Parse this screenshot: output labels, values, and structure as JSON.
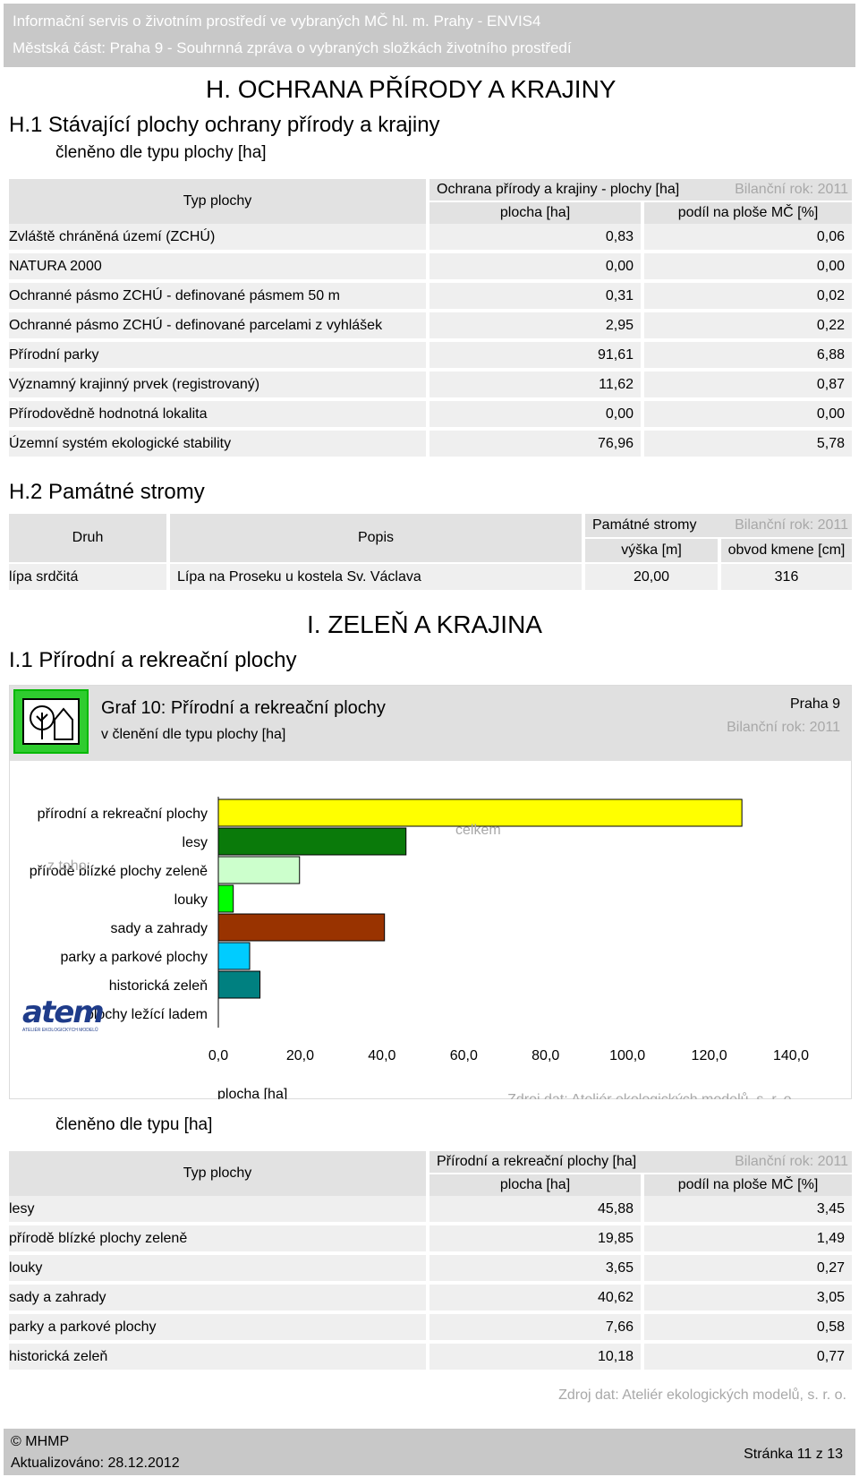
{
  "header": {
    "line1": "Informační servis o životním prostředí ve vybraných MČ hl. m. Prahy - ENVIS4",
    "line2": "Městská část: Praha 9 - Souhrnná zpráva o vybraných složkách životního prostředí"
  },
  "section_h": {
    "title": "H. OCHRANA PŘÍRODY A KRAJINY",
    "h1_title": "H.1  Stávající plochy ochrany přírody a krajiny",
    "h1_subtitle": "členěno dle typu plochy [ha]",
    "table": {
      "col_type": "Typ plochy",
      "group": "Ochrana přírody a krajiny - plochy [ha]",
      "year": "Bilanční rok: 2011",
      "col_area": "plocha [ha]",
      "col_share": "podíl na ploše MČ [%]",
      "rows": [
        {
          "name": "Zvláště chráněná území (ZCHÚ)",
          "area": "0,83",
          "share": "0,06"
        },
        {
          "name": "NATURA 2000",
          "area": "0,00",
          "share": "0,00"
        },
        {
          "name": "Ochranné pásmo ZCHÚ - definované pásmem 50 m",
          "area": "0,31",
          "share": "0,02"
        },
        {
          "name": "Ochranné pásmo ZCHÚ - definované parcelami z vyhlášek",
          "area": "2,95",
          "share": "0,22"
        },
        {
          "name": "Přírodní parky",
          "area": "91,61",
          "share": "6,88"
        },
        {
          "name": "Významný krajinný prvek (registrovaný)",
          "area": "11,62",
          "share": "0,87"
        },
        {
          "name": "Přírodovědně hodnotná lokalita",
          "area": "0,00",
          "share": "0,00"
        },
        {
          "name": "Územní systém ekologické stability",
          "area": "76,96",
          "share": "5,78"
        }
      ]
    },
    "h2_title": "H.2  Památné stromy",
    "trees": {
      "col_kind": "Druh",
      "col_desc": "Popis",
      "group": "Památné stromy",
      "year": "Bilanční rok: 2011",
      "col_height": "výška [m]",
      "col_girth": "obvod kmene [cm]",
      "rows": [
        {
          "kind": "lípa srdčitá",
          "desc": "Lípa na Proseku u kostela Sv. Václava",
          "height": "20,00",
          "girth": "316"
        }
      ]
    }
  },
  "section_i": {
    "title": "I. ZELEŇ A KRAJINA",
    "i1_title": "I.1   Přírodní a rekreační plochy",
    "chart": {
      "title": "Graf 10: Přírodní a rekreační plochy",
      "subtitle": "v členění dle typu plochy [ha]",
      "area": "Praha 9",
      "year": "Bilanční rok: 2011",
      "total_label": "celkem",
      "ztoho": "z toho:",
      "xlabel": "plocha [ha]",
      "source": "Zdroj dat: Ateliér ekologických modelů, s. r. o.",
      "logo_text": "atem",
      "logo_sub": "ATELIÉR EKOLOGICKÝCH MODELŮ"
    },
    "chart_data": {
      "type": "bar",
      "orientation": "horizontal",
      "categories": [
        "přírodní a rekreační plochy",
        "lesy",
        "přírodě blízké plochy zeleně",
        "louky",
        "sady a zahrady",
        "parky a parkové plochy",
        "historická zeleň",
        "plochy ležící ladem"
      ],
      "values": [
        128.0,
        45.88,
        19.85,
        3.65,
        40.62,
        7.66,
        10.18,
        0.0
      ],
      "colors": [
        "#ffff00",
        "#0a7a0a",
        "#ccffcc",
        "#00ff00",
        "#993300",
        "#00ccff",
        "#008080",
        "#808080"
      ],
      "xlim": [
        0,
        140
      ],
      "ticks": [
        "0,0",
        "20,0",
        "40,0",
        "60,0",
        "80,0",
        "100,0",
        "120,0",
        "140,0"
      ],
      "xlabel": "plocha [ha]"
    },
    "table_subtitle": "členěno dle typu [ha]",
    "table": {
      "col_type": "Typ plochy",
      "group": "Přírodní a rekreační plochy [ha]",
      "year": "Bilanční rok: 2011",
      "col_area": "plocha [ha]",
      "col_share": "podíl na ploše MČ [%]",
      "rows": [
        {
          "name": "lesy",
          "area": "45,88",
          "share": "3,45"
        },
        {
          "name": "přírodě blízké plochy zeleně",
          "area": "19,85",
          "share": "1,49"
        },
        {
          "name": "louky",
          "area": "3,65",
          "share": "0,27"
        },
        {
          "name": "sady a zahrady",
          "area": "40,62",
          "share": "3,05"
        },
        {
          "name": "parky a parkové plochy",
          "area": "7,66",
          "share": "0,58"
        },
        {
          "name": "historická zeleň",
          "area": "10,18",
          "share": "0,77"
        }
      ]
    },
    "source": "Zdroj dat: Ateliér ekologických modelů, s. r. o."
  },
  "footer": {
    "copyright": "© MHMP",
    "updated": "Aktualizováno: 28.12.2012",
    "page": "Stránka 11 z 13"
  }
}
